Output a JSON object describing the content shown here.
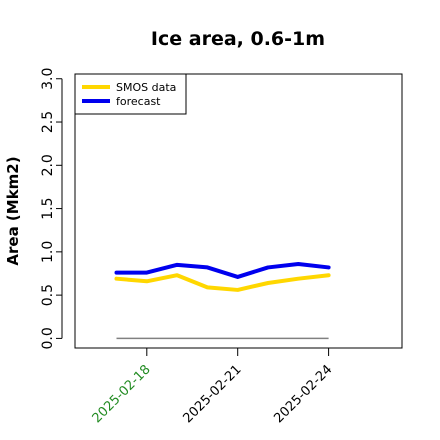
{
  "chart_data": {
    "type": "line",
    "title": "Ice area, 0.6-1m",
    "xlabel": "",
    "ylabel": "Area (Mkm2)",
    "ylim": [
      0.0,
      3.0
    ],
    "yticks": [
      "0.0",
      "0.5",
      "1.0",
      "1.5",
      "2.0",
      "2.5",
      "3.0"
    ],
    "x": [
      "2025-02-17",
      "2025-02-18",
      "2025-02-19",
      "2025-02-20",
      "2025-02-21",
      "2025-02-22",
      "2025-02-23",
      "2025-02-24"
    ],
    "xtick_labels": [
      "2025-02-18",
      "2025-02-21",
      "2025-02-24"
    ],
    "xtick_colors": [
      "#228b22",
      "#000000",
      "#000000"
    ],
    "grid": false,
    "legend_position": "top-left",
    "series": [
      {
        "name": "SMOS data",
        "color": "#ffd700",
        "values": [
          0.69,
          0.66,
          0.73,
          0.59,
          0.56,
          0.64,
          0.69,
          0.73
        ]
      },
      {
        "name": "forecast",
        "color": "#0000ee",
        "values": [
          0.76,
          0.76,
          0.85,
          0.82,
          0.71,
          0.82,
          0.86,
          0.82
        ]
      }
    ],
    "baseline": {
      "color": "#808080",
      "values": [
        0.0,
        0.0,
        0.0,
        0.0,
        0.0,
        0.0,
        0.0,
        0.0
      ]
    }
  }
}
